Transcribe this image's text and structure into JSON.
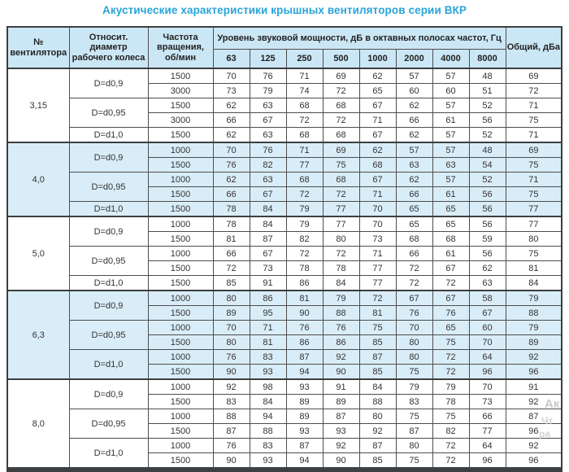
{
  "title": "Акустические характеристики крышных вентиляторов серии ВКР",
  "header": {
    "fan_number": "№ вентилятора",
    "diameter": "Относит. диаметр рабочего колеса",
    "rpm": "Частота вращения, об/мин",
    "sound_power": "Уровень звуковой мощности, дБ в октавных полосах частот, Гц",
    "total": "Общий, дБа",
    "frequencies": [
      "63",
      "125",
      "250",
      "500",
      "1000",
      "2000",
      "4000",
      "8000"
    ]
  },
  "sections": [
    {
      "fan_no": "3,15",
      "highlighted": false,
      "groups": [
        {
          "diameter": "D=d0,9",
          "rows": [
            {
              "rpm": "1500",
              "levels": [
                70,
                76,
                71,
                69,
                62,
                57,
                57,
                48
              ],
              "total": 69
            },
            {
              "rpm": "3000",
              "levels": [
                73,
                79,
                74,
                72,
                65,
                60,
                60,
                51
              ],
              "total": 72
            }
          ]
        },
        {
          "diameter": "D=d0,95",
          "rows": [
            {
              "rpm": "1500",
              "levels": [
                62,
                63,
                68,
                68,
                67,
                62,
                57,
                52
              ],
              "total": 71
            },
            {
              "rpm": "3000",
              "levels": [
                66,
                67,
                72,
                72,
                71,
                66,
                61,
                56
              ],
              "total": 75
            }
          ]
        },
        {
          "diameter": "D=d1,0",
          "rows": [
            {
              "rpm": "1500",
              "levels": [
                62,
                63,
                68,
                68,
                67,
                62,
                57,
                52
              ],
              "total": 71
            }
          ]
        }
      ]
    },
    {
      "fan_no": "4,0",
      "highlighted": true,
      "groups": [
        {
          "diameter": "D=d0,9",
          "rows": [
            {
              "rpm": "1000",
              "levels": [
                70,
                76,
                71,
                69,
                62,
                57,
                57,
                48
              ],
              "total": 69
            },
            {
              "rpm": "1500",
              "levels": [
                76,
                82,
                77,
                75,
                68,
                63,
                63,
                54
              ],
              "total": 75
            }
          ]
        },
        {
          "diameter": "D=d0,95",
          "rows": [
            {
              "rpm": "1000",
              "levels": [
                62,
                63,
                68,
                68,
                67,
                62,
                57,
                52
              ],
              "total": 71
            },
            {
              "rpm": "1500",
              "levels": [
                66,
                67,
                72,
                72,
                71,
                66,
                61,
                56
              ],
              "total": 75
            }
          ]
        },
        {
          "diameter": "D=d1,0",
          "rows": [
            {
              "rpm": "1500",
              "levels": [
                78,
                84,
                79,
                77,
                70,
                65,
                65,
                56
              ],
              "total": 77
            }
          ]
        }
      ]
    },
    {
      "fan_no": "5,0",
      "highlighted": false,
      "groups": [
        {
          "diameter": "D=d0,9",
          "rows": [
            {
              "rpm": "1000",
              "levels": [
                78,
                84,
                79,
                77,
                70,
                65,
                65,
                56
              ],
              "total": 77
            },
            {
              "rpm": "1500",
              "levels": [
                81,
                87,
                82,
                80,
                73,
                68,
                68,
                59
              ],
              "total": 80
            }
          ]
        },
        {
          "diameter": "D=d0,95",
          "rows": [
            {
              "rpm": "1000",
              "levels": [
                66,
                67,
                72,
                72,
                71,
                66,
                61,
                56
              ],
              "total": 75
            },
            {
              "rpm": "1500",
              "levels": [
                72,
                73,
                78,
                78,
                77,
                72,
                67,
                62
              ],
              "total": 81
            }
          ]
        },
        {
          "diameter": "D=d1,0",
          "rows": [
            {
              "rpm": "1500",
              "levels": [
                85,
                91,
                86,
                84,
                77,
                72,
                72,
                63
              ],
              "total": 84
            }
          ]
        }
      ]
    },
    {
      "fan_no": "6,3",
      "highlighted": true,
      "groups": [
        {
          "diameter": "D=d0,9",
          "rows": [
            {
              "rpm": "1000",
              "levels": [
                80,
                86,
                81,
                79,
                72,
                67,
                67,
                58
              ],
              "total": 79
            },
            {
              "rpm": "1500",
              "levels": [
                89,
                95,
                90,
                88,
                81,
                76,
                76,
                67
              ],
              "total": 88
            }
          ]
        },
        {
          "diameter": "D=d0,95",
          "rows": [
            {
              "rpm": "1000",
              "levels": [
                70,
                71,
                76,
                76,
                75,
                70,
                65,
                60
              ],
              "total": 79
            },
            {
              "rpm": "1500",
              "levels": [
                80,
                81,
                86,
                86,
                85,
                80,
                75,
                70
              ],
              "total": 89
            }
          ]
        },
        {
          "diameter": "D=d1,0",
          "rows": [
            {
              "rpm": "1000",
              "levels": [
                76,
                83,
                87,
                92,
                87,
                80,
                72,
                64
              ],
              "total": 92
            },
            {
              "rpm": "1500",
              "levels": [
                90,
                93,
                94,
                90,
                85,
                75,
                72,
                96
              ],
              "total": 96
            }
          ]
        }
      ]
    },
    {
      "fan_no": "8,0",
      "highlighted": false,
      "groups": [
        {
          "diameter": "D=d0,9",
          "rows": [
            {
              "rpm": "1000",
              "levels": [
                92,
                98,
                93,
                91,
                84,
                79,
                79,
                70
              ],
              "total": 91
            },
            {
              "rpm": "1500",
              "levels": [
                83,
                84,
                89,
                89,
                88,
                83,
                78,
                73
              ],
              "total": 92
            }
          ]
        },
        {
          "diameter": "D=d0,95",
          "rows": [
            {
              "rpm": "1000",
              "levels": [
                88,
                94,
                89,
                87,
                80,
                75,
                75,
                66
              ],
              "total": 87
            },
            {
              "rpm": "1500",
              "levels": [
                87,
                88,
                93,
                93,
                92,
                87,
                82,
                77
              ],
              "total": 96
            }
          ]
        },
        {
          "diameter": "D=d1,0",
          "rows": [
            {
              "rpm": "1000",
              "levels": [
                76,
                83,
                87,
                92,
                87,
                80,
                72,
                64
              ],
              "total": 92
            },
            {
              "rpm": "1500",
              "levels": [
                90,
                93,
                94,
                90,
                85,
                75,
                72,
                96
              ],
              "total": 96
            }
          ]
        }
      ]
    }
  ],
  "watermark": {
    "fragment_1": "Ак",
    "fragment_2": "Чт",
    "fragment_3": "ра"
  },
  "colors": {
    "title": "#29a4d9",
    "header_bg": "#cbe7f5",
    "highlight_row_bg": "#d9edf8",
    "border": "#3e3e3e",
    "bottom_strip": "#3d4042"
  }
}
